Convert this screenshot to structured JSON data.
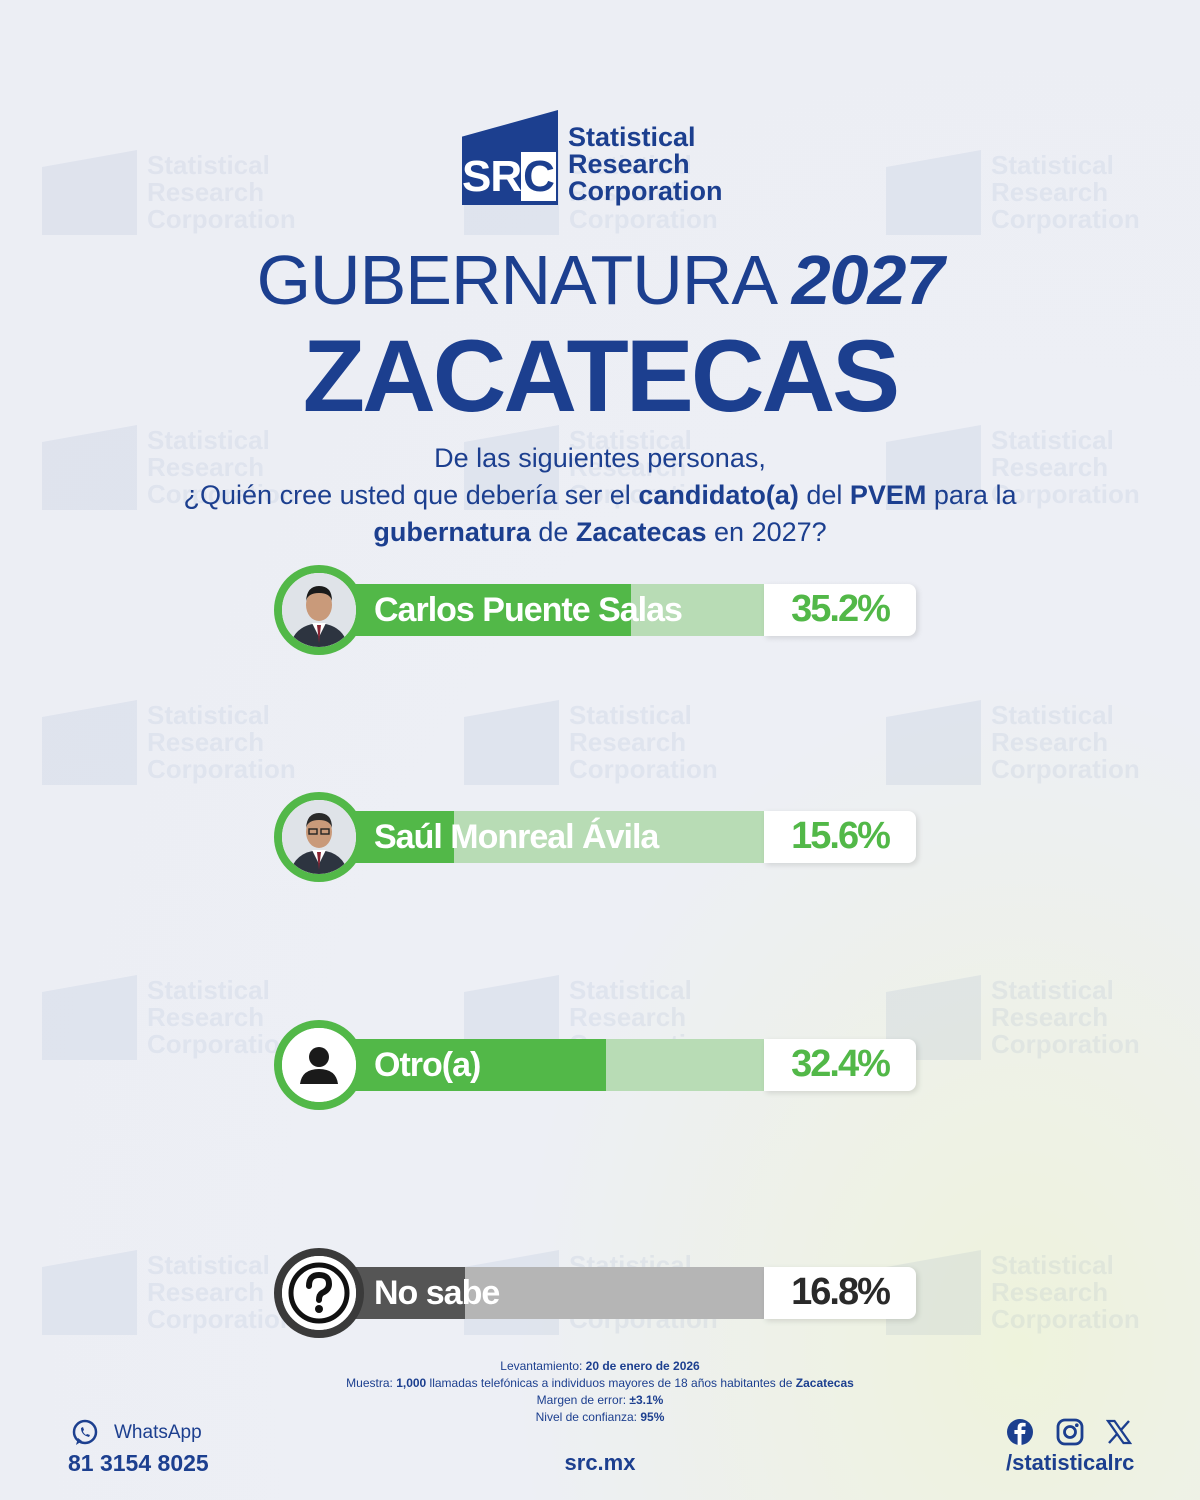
{
  "brand": {
    "logo_mark": "SRC",
    "name_line1": "Statistical",
    "name_line2": "Research",
    "name_line3": "Corporation",
    "primary_color": "#1c3f8f",
    "accent_color": "#52b848"
  },
  "header": {
    "title_light": "GUBERNATURA",
    "title_year": "2027",
    "title_state": "ZACATECAS"
  },
  "question": {
    "line1": "De las siguientes personas,",
    "line2_a": "¿Quién cree usted que debería ser el ",
    "line2_b": "candidato(a)",
    "line2_c": " del ",
    "line2_d": "PVEM",
    "line2_e": " para la",
    "line3_a": "gubernatura",
    "line3_b": " de ",
    "line3_c": "Zacatecas",
    "line3_d": " en 2027?"
  },
  "chart_data": {
    "type": "bar",
    "categories": [
      "Carlos Puente Salas",
      "Saúl Monreal Ávila",
      "Otro(a)",
      "No sabe"
    ],
    "values": [
      35.2,
      15.6,
      32.4,
      16.8
    ],
    "value_labels": [
      "35.2%",
      "15.6%",
      "32.4%",
      "16.8%"
    ],
    "colors": [
      "#52b848",
      "#52b848",
      "#52b848",
      "#555555"
    ],
    "avatars": [
      "person-photo-icon",
      "person-photo-icon",
      "user-silhouette-icon",
      "question-mark-icon"
    ],
    "ylim": [
      0,
      50
    ]
  },
  "methodology": {
    "fieldwork_label": "Levantamiento: ",
    "fieldwork_value": "20 de enero de 2026",
    "sample_label": "Muestra: ",
    "sample_value_a": "1,000",
    "sample_text": " llamadas telefónicas a individuos mayores de 18 años habitantes de ",
    "sample_value_b": "Zacatecas",
    "error_label": "Margen de error: ",
    "error_value": "±3.1%",
    "confidence_label": "Nivel de confianza: ",
    "confidence_value": "95%"
  },
  "footer": {
    "whatsapp_label": "WhatsApp",
    "whatsapp_number": "81 3154 8025",
    "website": "src.mx",
    "social_handle": "/statisticalrc"
  }
}
